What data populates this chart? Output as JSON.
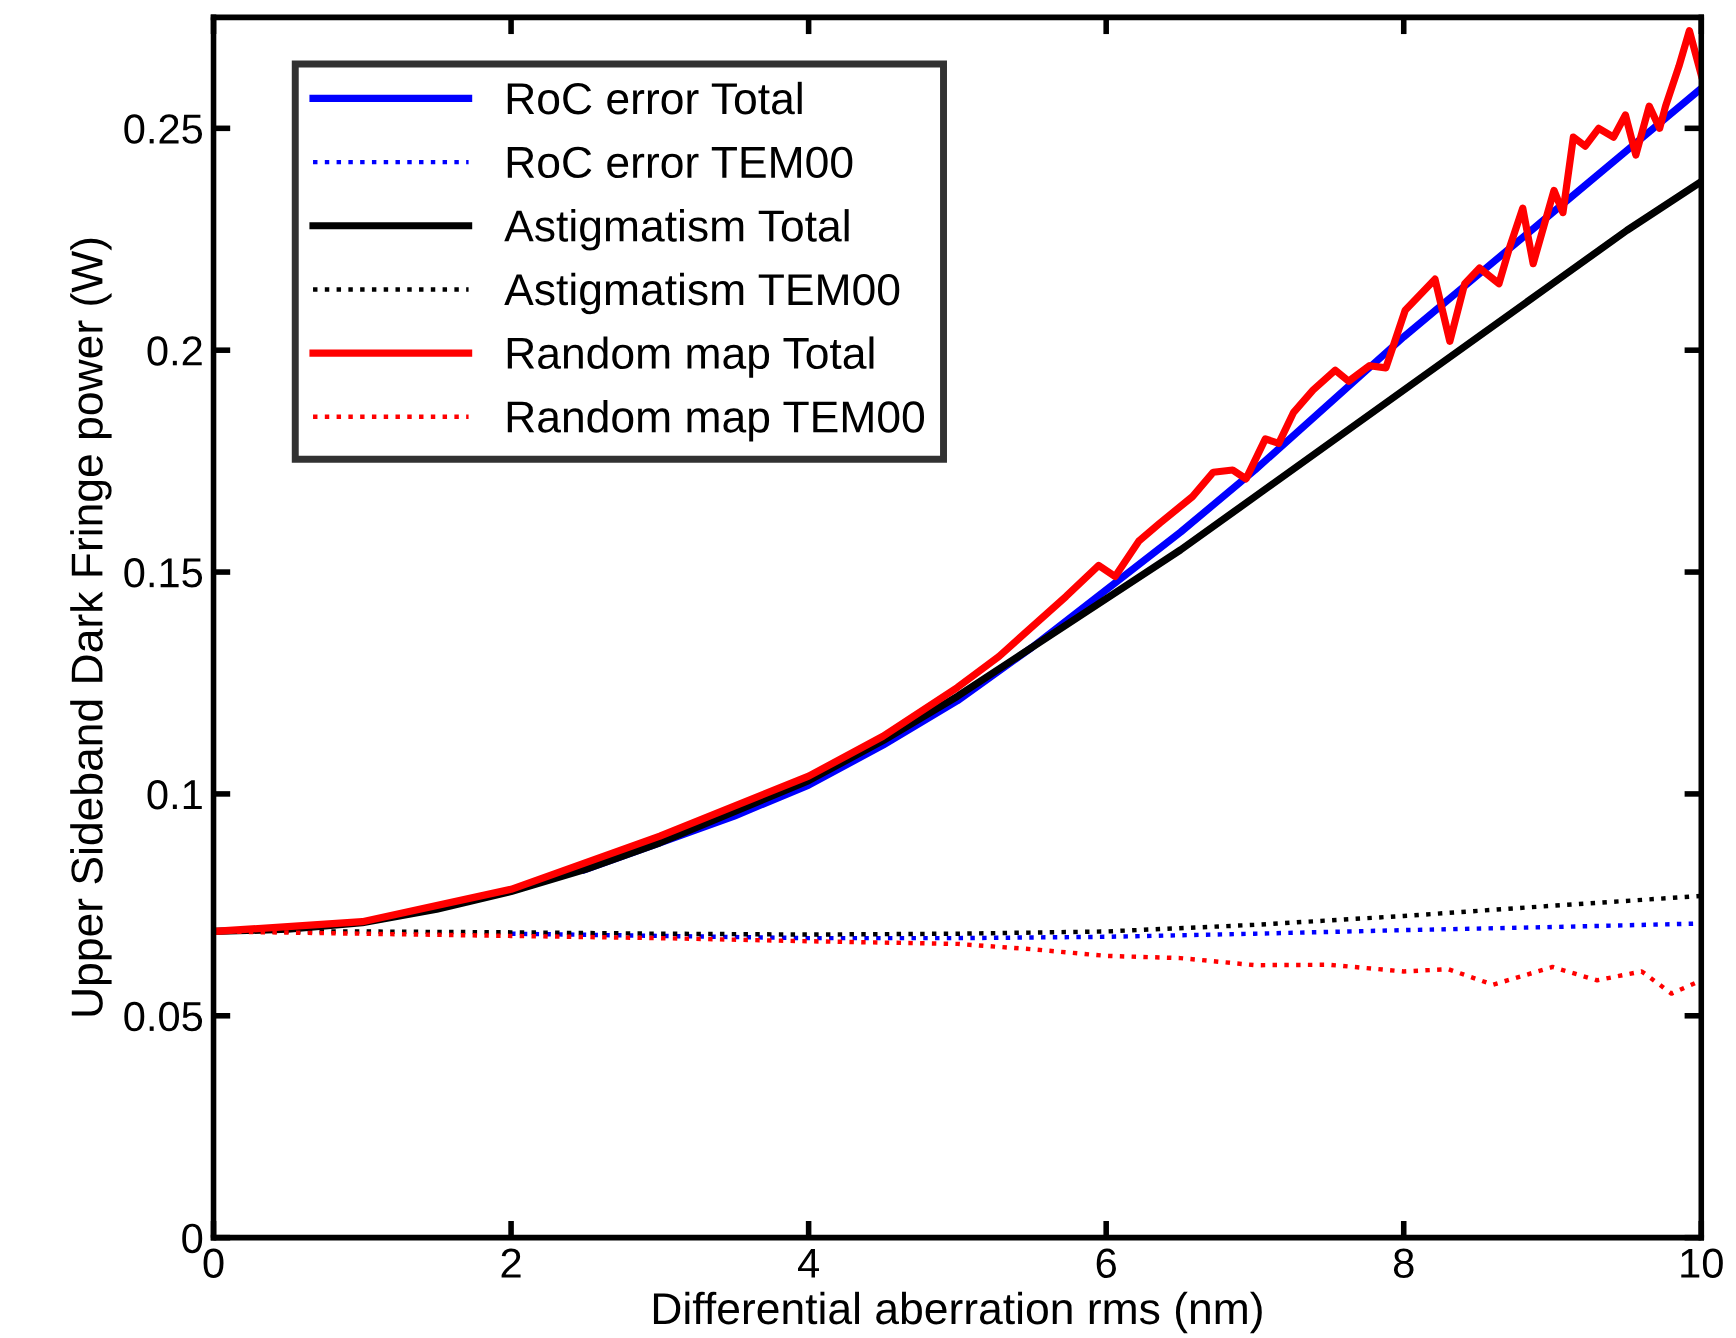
{
  "chart_data": {
    "type": "line",
    "xlabel": "Differential aberration rms (nm)",
    "ylabel": "Upper Sideband Dark Fringe power (W)",
    "xlim": [
      0,
      10
    ],
    "ylim": [
      0,
      0.275
    ],
    "xticks": [
      0,
      2,
      4,
      6,
      8,
      10
    ],
    "yticks": [
      0,
      0.05,
      0.1,
      0.15,
      0.2,
      0.25
    ],
    "grid": false,
    "legend": "top left",
    "series": [
      {
        "name": "RoC error Total",
        "color": "#0000ff",
        "line_style": "solid",
        "x": [
          2.5,
          3,
          3.5,
          4,
          4.5,
          5,
          5.5,
          6,
          6.5,
          7,
          7.5,
          8,
          8.5,
          9,
          9.5,
          10
        ],
        "values": [
          0.083,
          0.089,
          0.095,
          0.102,
          0.111,
          0.121,
          0.133,
          0.146,
          0.159,
          0.173,
          0.188,
          0.203,
          0.217,
          0.231,
          0.245,
          0.259
        ]
      },
      {
        "name": "RoC error TEM00",
        "color": "#0000ff",
        "line_style": "dotted",
        "x": [
          2,
          3,
          4,
          5,
          6,
          7,
          8,
          9,
          10
        ],
        "values": [
          0.0685,
          0.068,
          0.0675,
          0.0675,
          0.0678,
          0.0685,
          0.0693,
          0.07,
          0.0708
        ]
      },
      {
        "name": "Astigmatism Total",
        "color": "#000000",
        "line_style": "solid",
        "x": [
          0,
          0.5,
          1,
          1.5,
          2,
          2.5,
          3,
          3.5,
          4,
          4.5,
          5,
          5.5,
          6,
          6.5,
          7,
          7.5,
          8,
          8.5,
          9,
          9.5,
          10
        ],
        "values": [
          0.069,
          0.0695,
          0.071,
          0.074,
          0.078,
          0.083,
          0.089,
          0.096,
          0.103,
          0.112,
          0.122,
          0.133,
          0.144,
          0.155,
          0.167,
          0.179,
          0.191,
          0.203,
          0.215,
          0.227,
          0.238
        ]
      },
      {
        "name": "Astigmatism TEM00",
        "color": "#000000",
        "line_style": "dotted",
        "x": [
          0,
          1,
          2,
          3,
          4,
          5,
          6,
          7,
          8,
          9,
          10
        ],
        "values": [
          0.069,
          0.069,
          0.0688,
          0.0685,
          0.0683,
          0.0685,
          0.069,
          0.0705,
          0.0725,
          0.0748,
          0.077
        ]
      },
      {
        "name": "Random map Total",
        "color": "#ff0000",
        "line_style": "solid",
        "x": [
          0,
          1,
          2,
          3,
          4,
          4.5,
          5,
          5.28,
          5.73,
          5.95,
          6.06,
          6.22,
          6.36,
          6.58,
          6.72,
          6.85,
          6.94,
          7.07,
          7.16,
          7.26,
          7.39,
          7.54,
          7.63,
          7.77,
          7.88,
          8.01,
          8.21,
          8.31,
          8.41,
          8.51,
          8.64,
          8.71,
          8.8,
          8.87,
          9.01,
          9.07,
          9.14,
          9.22,
          9.31,
          9.41,
          9.49,
          9.56,
          9.65,
          9.72,
          9.76,
          9.85,
          9.92,
          10
        ],
        "values": [
          0.069,
          0.0712,
          0.0785,
          0.0905,
          0.104,
          0.113,
          0.124,
          0.131,
          0.1445,
          0.1515,
          0.149,
          0.157,
          0.161,
          0.167,
          0.1725,
          0.173,
          0.171,
          0.18,
          0.179,
          0.186,
          0.191,
          0.1955,
          0.193,
          0.1965,
          0.196,
          0.209,
          0.216,
          0.202,
          0.215,
          0.2185,
          0.215,
          0.223,
          0.232,
          0.2195,
          0.236,
          0.231,
          0.248,
          0.246,
          0.25,
          0.248,
          0.253,
          0.244,
          0.255,
          0.25,
          0.255,
          0.264,
          0.272,
          0.262
        ]
      },
      {
        "name": "Random map TEM00",
        "color": "#ff0000",
        "line_style": "dotted",
        "x": [
          0,
          1,
          2,
          3,
          4,
          5,
          5.5,
          6,
          6.5,
          7,
          7.5,
          8,
          8.3,
          8.6,
          9,
          9.3,
          9.6,
          9.8,
          10
        ],
        "values": [
          0.069,
          0.0685,
          0.068,
          0.0675,
          0.0668,
          0.0662,
          0.065,
          0.0635,
          0.063,
          0.0614,
          0.0615,
          0.06,
          0.0605,
          0.057,
          0.061,
          0.058,
          0.06,
          0.055,
          0.058
        ]
      }
    ]
  }
}
